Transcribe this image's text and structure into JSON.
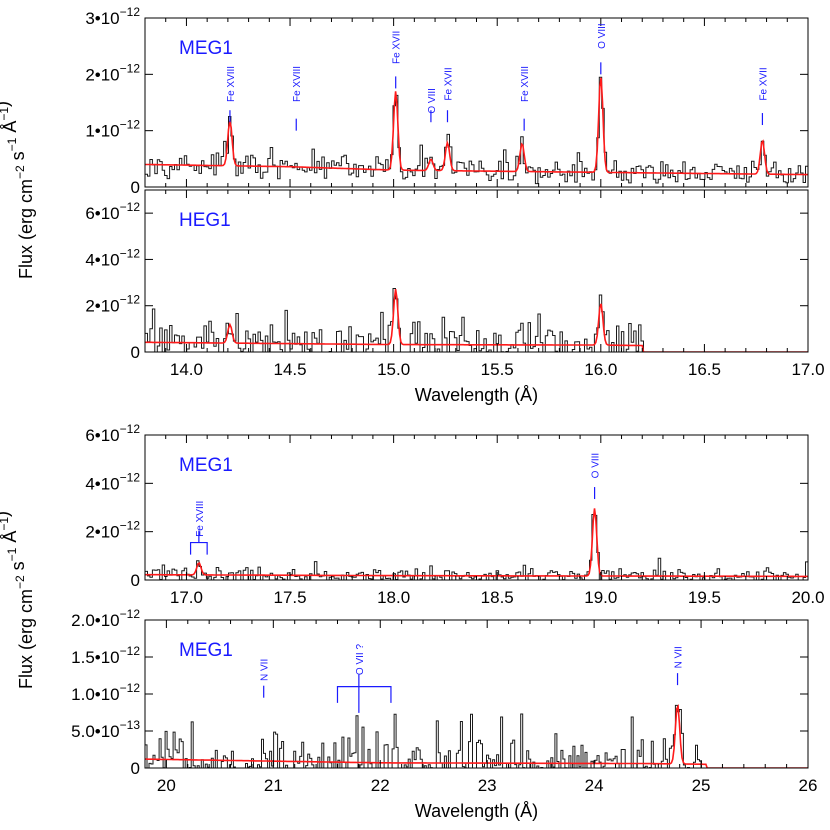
{
  "chart_data": [
    {
      "type": "line",
      "panel": "MEG1",
      "title": "MEG1",
      "xlabel": "",
      "ylabel": "Flux (erg cm^-2 s^-1 Å^-1)",
      "xlim": [
        13.8,
        17.0
      ],
      "ylim": [
        0,
        3e-12
      ],
      "yticks": [
        {
          "value": 0,
          "label": "0"
        },
        {
          "value": 1e-12,
          "label": "1•10",
          "exp": "−12"
        },
        {
          "value": 2e-12,
          "label": "2•10",
          "exp": "−12"
        },
        {
          "value": 3e-12,
          "label": "3•10",
          "exp": "−12"
        }
      ],
      "xticks": [],
      "model_base": [
        [
          13.8,
          4e-13
        ],
        [
          14.5,
          3.6e-13
        ],
        [
          15.0,
          3e-13
        ],
        [
          15.5,
          2.8e-13
        ],
        [
          16.0,
          2.6e-13
        ],
        [
          17.0,
          2.2e-13
        ]
      ],
      "noise_amp": 2.5e-13,
      "peaks": [
        [
          14.21,
          8e-13
        ],
        [
          15.01,
          1.4e-12
        ],
        [
          15.18,
          2e-13
        ],
        [
          15.26,
          5e-13
        ],
        [
          15.62,
          5e-13
        ],
        [
          16.0,
          1.7e-12
        ],
        [
          16.78,
          6e-13
        ]
      ],
      "x_cutoff": null,
      "lines": [
        {
          "x": 14.21,
          "label": "Fe XVIII",
          "mark_y": 1.15e-12,
          "label_y": 1.9e-12
        },
        {
          "x": 14.53,
          "label": "Fe XVIII",
          "mark_y": 1e-12,
          "label_y": 1.9e-12
        },
        {
          "x": 15.01,
          "label": "Fe XVII",
          "mark_y": 1.75e-12,
          "label_y": 2.55e-12
        },
        {
          "x": 15.18,
          "label": "O VIII",
          "mark_y": 1.15e-12,
          "label_y": 1.6e-12
        },
        {
          "x": 15.26,
          "label": "Fe XVII",
          "mark_y": 1.15e-12,
          "label_y": 1.9e-12
        },
        {
          "x": 15.63,
          "label": "Fe XVIII",
          "mark_y": 1e-12,
          "label_y": 1.9e-12
        },
        {
          "x": 16.0,
          "label": "O VIII",
          "mark_y": 2e-12,
          "label_y": 2.75e-12
        },
        {
          "x": 16.78,
          "label": "Fe XVII",
          "mark_y": 1.1e-12,
          "label_y": 1.9e-12
        }
      ],
      "brackets": []
    },
    {
      "type": "line",
      "panel": "HEG1",
      "title": "HEG1",
      "xlabel": "Wavelength (Å)",
      "ylabel": "",
      "xlim": [
        13.8,
        17.0
      ],
      "ylim": [
        0,
        7e-12
      ],
      "yticks": [
        {
          "value": 0,
          "label": "0"
        },
        {
          "value": 2e-12,
          "label": "2•10",
          "exp": "−12"
        },
        {
          "value": 4e-12,
          "label": "4•10",
          "exp": "−12"
        },
        {
          "value": 6e-12,
          "label": "6•10",
          "exp": "−12"
        }
      ],
      "xticks": [
        14.0,
        14.5,
        15.0,
        15.5,
        16.0,
        16.5,
        17.0
      ],
      "model_base": [
        [
          13.8,
          4.2e-13
        ],
        [
          15.0,
          3.2e-13
        ],
        [
          16.0,
          3e-13
        ],
        [
          16.2,
          2.8e-13
        ]
      ],
      "noise_amp": 1.1e-12,
      "peaks": [
        [
          14.21,
          8e-13
        ],
        [
          15.01,
          2.4e-12
        ],
        [
          16.0,
          1.8e-12
        ]
      ],
      "x_cutoff": 16.2,
      "lines": [],
      "brackets": []
    },
    {
      "type": "line",
      "panel": "MEG1",
      "title": "MEG1",
      "xlabel": "",
      "ylabel": "Flux (erg cm^-2 s^-1 Å^-1)",
      "xlim": [
        16.8,
        20.0
      ],
      "ylim": [
        0,
        6e-12
      ],
      "yticks": [
        {
          "value": 0,
          "label": "0"
        },
        {
          "value": 2e-12,
          "label": "2•10",
          "exp": "−12"
        },
        {
          "value": 4e-12,
          "label": "4•10",
          "exp": "−12"
        },
        {
          "value": 6e-12,
          "label": "6•10",
          "exp": "−12"
        }
      ],
      "xticks": [
        17.0,
        17.5,
        18.0,
        18.5,
        19.0,
        19.5,
        20.0
      ],
      "model_base": [
        [
          16.8,
          2.2e-13
        ],
        [
          18.0,
          1.8e-13
        ],
        [
          20.0,
          1.5e-13
        ]
      ],
      "noise_amp": 3.5e-13,
      "peaks": [
        [
          17.06,
          5e-13
        ],
        [
          18.97,
          2.8e-12
        ]
      ],
      "x_cutoff": null,
      "lines": [
        {
          "x": 18.97,
          "label": "O VIII",
          "mark_y": 3.35e-12,
          "label_y": 4.9e-12
        }
      ],
      "brackets": [
        {
          "x1": 17.02,
          "x2": 17.1,
          "label": "Fe XVIII",
          "y_top": 1.55e-12,
          "y_bottom": 1.05e-12,
          "label_y": 2.7e-12
        }
      ]
    },
    {
      "type": "line",
      "panel": "MEG1",
      "title": "MEG1",
      "xlabel": "Wavelength (Å)",
      "ylabel": "",
      "xlim": [
        19.8,
        26.0
      ],
      "ylim": [
        0,
        2e-12
      ],
      "yticks": [
        {
          "value": 0,
          "label": "0"
        },
        {
          "value": 5e-13,
          "label": "5.0•10",
          "exp": "−13"
        },
        {
          "value": 1e-12,
          "label": "1.0•10",
          "exp": "−12"
        },
        {
          "value": 1.5e-12,
          "label": "1.5•10",
          "exp": "−12"
        },
        {
          "value": 2e-12,
          "label": "2.0•10",
          "exp": "−12"
        }
      ],
      "xticks": [
        20,
        21,
        22,
        23,
        24,
        25,
        26
      ],
      "model_base": [
        [
          19.8,
          1.2e-13
        ],
        [
          22.0,
          7e-14
        ],
        [
          24.5,
          6e-14
        ],
        [
          25.05,
          5e-14
        ]
      ],
      "noise_amp": 4.5e-13,
      "peaks": [
        [
          24.78,
          8e-13
        ]
      ],
      "x_cutoff": 25.05,
      "lines": [
        {
          "x": 20.91,
          "label": "N VII",
          "mark_y": 9.5e-13,
          "label_y": 1.38e-12
        },
        {
          "x": 24.78,
          "label": "N VII",
          "mark_y": 1.12e-12,
          "label_y": 1.55e-12
        }
      ],
      "brackets": [
        {
          "x1": 21.6,
          "x2": 22.1,
          "xmid": 21.8,
          "label": "O VII ?",
          "y_top": 1.1e-12,
          "y_bottom": 8.8e-13,
          "label_y": 1.52e-12
        }
      ]
    }
  ],
  "colors": {
    "data": "#1a1a1a",
    "model": "#ff1a1a",
    "labels": "#1a1aff",
    "axes": "#000000"
  }
}
